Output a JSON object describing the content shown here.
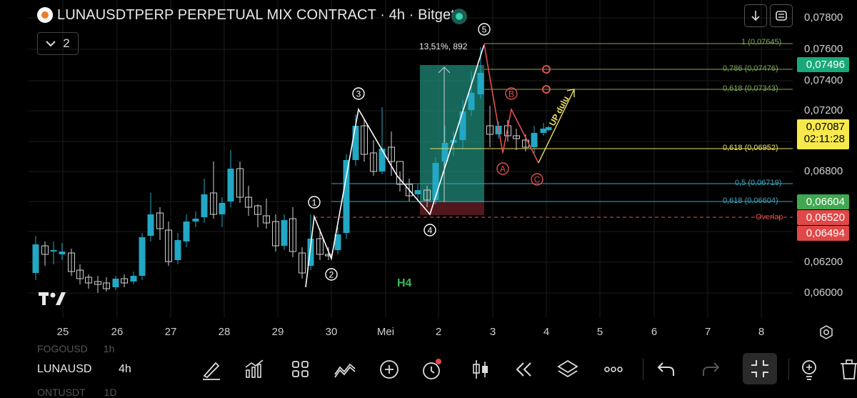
{
  "header": {
    "title": "LUNAUSDTPERP PERPETUAL MIX CONTRACT · 4h · Bitget",
    "collapse_count": "2"
  },
  "colors": {
    "bull": "#22a7c4",
    "bear": "#d0d0d0",
    "wave": "#ffffff",
    "correction": "#e05050",
    "fib_green": "#7faa55",
    "fib_blue": "#3aa7c0",
    "fib_yellow": "#e8e060",
    "overlap": "#e05050"
  },
  "price_axis": {
    "labels": [
      "0,07800",
      "0,07600",
      "0,07400",
      "0,07200",
      "0,06800",
      "0,06200",
      "0,06000"
    ],
    "badges": [
      {
        "value": "0,07496",
        "color": "#1aa87a",
        "text_color": "#ffffff"
      },
      {
        "value": "0,07087",
        "sub": "02:11:28",
        "color": "#f7e94d",
        "text_color": "#000000"
      },
      {
        "value": "0,06604",
        "color": "#40a850",
        "text_color": "#ffffff"
      },
      {
        "value": "0,06520",
        "color": "#e04848",
        "text_color": "#ffffff"
      },
      {
        "value": "0,06494",
        "color": "#e04848",
        "text_color": "#ffffff"
      }
    ]
  },
  "time_axis": [
    "25",
    "26",
    "27",
    "28",
    "29",
    "30",
    "Mei",
    "2",
    "3",
    "4",
    "5",
    "6",
    "7",
    "8"
  ],
  "annotations": {
    "measure_label": "13,51%, 892",
    "h4_label": "H4",
    "up_label": "UP dulu",
    "overlap_label": "Overlap",
    "fib_1": "1 (0,07645)",
    "fib_786": "0,786 (0,07476)",
    "fib_618_top": "0,618 (0,07343)",
    "fib_618_mid": "0,618 (0,06952)",
    "fib_5": "0,5 (0,06719)",
    "fib_618_low": "0,618 (0,06604)",
    "waves": [
      "1",
      "2",
      "3",
      "4",
      "5"
    ],
    "corrections": [
      "A",
      "B",
      "C"
    ]
  },
  "symbols": {
    "above": "FOGOUSD",
    "above_tf": "1h",
    "current": "LUNAUSD",
    "current_tf": "4h",
    "below": "ONTUSDT",
    "below_tf": "1D"
  },
  "toolbar": [
    "draw-pen-icon",
    "indicators-icon",
    "grid-icon",
    "pattern-icon",
    "add-icon",
    "alarm-icon",
    "candle-icon",
    "rewind-icon",
    "layers-icon",
    "more-icon",
    "undo-icon",
    "redo-icon",
    "fullscreen-exit-icon",
    "bulb-icon",
    "trash-icon"
  ]
}
